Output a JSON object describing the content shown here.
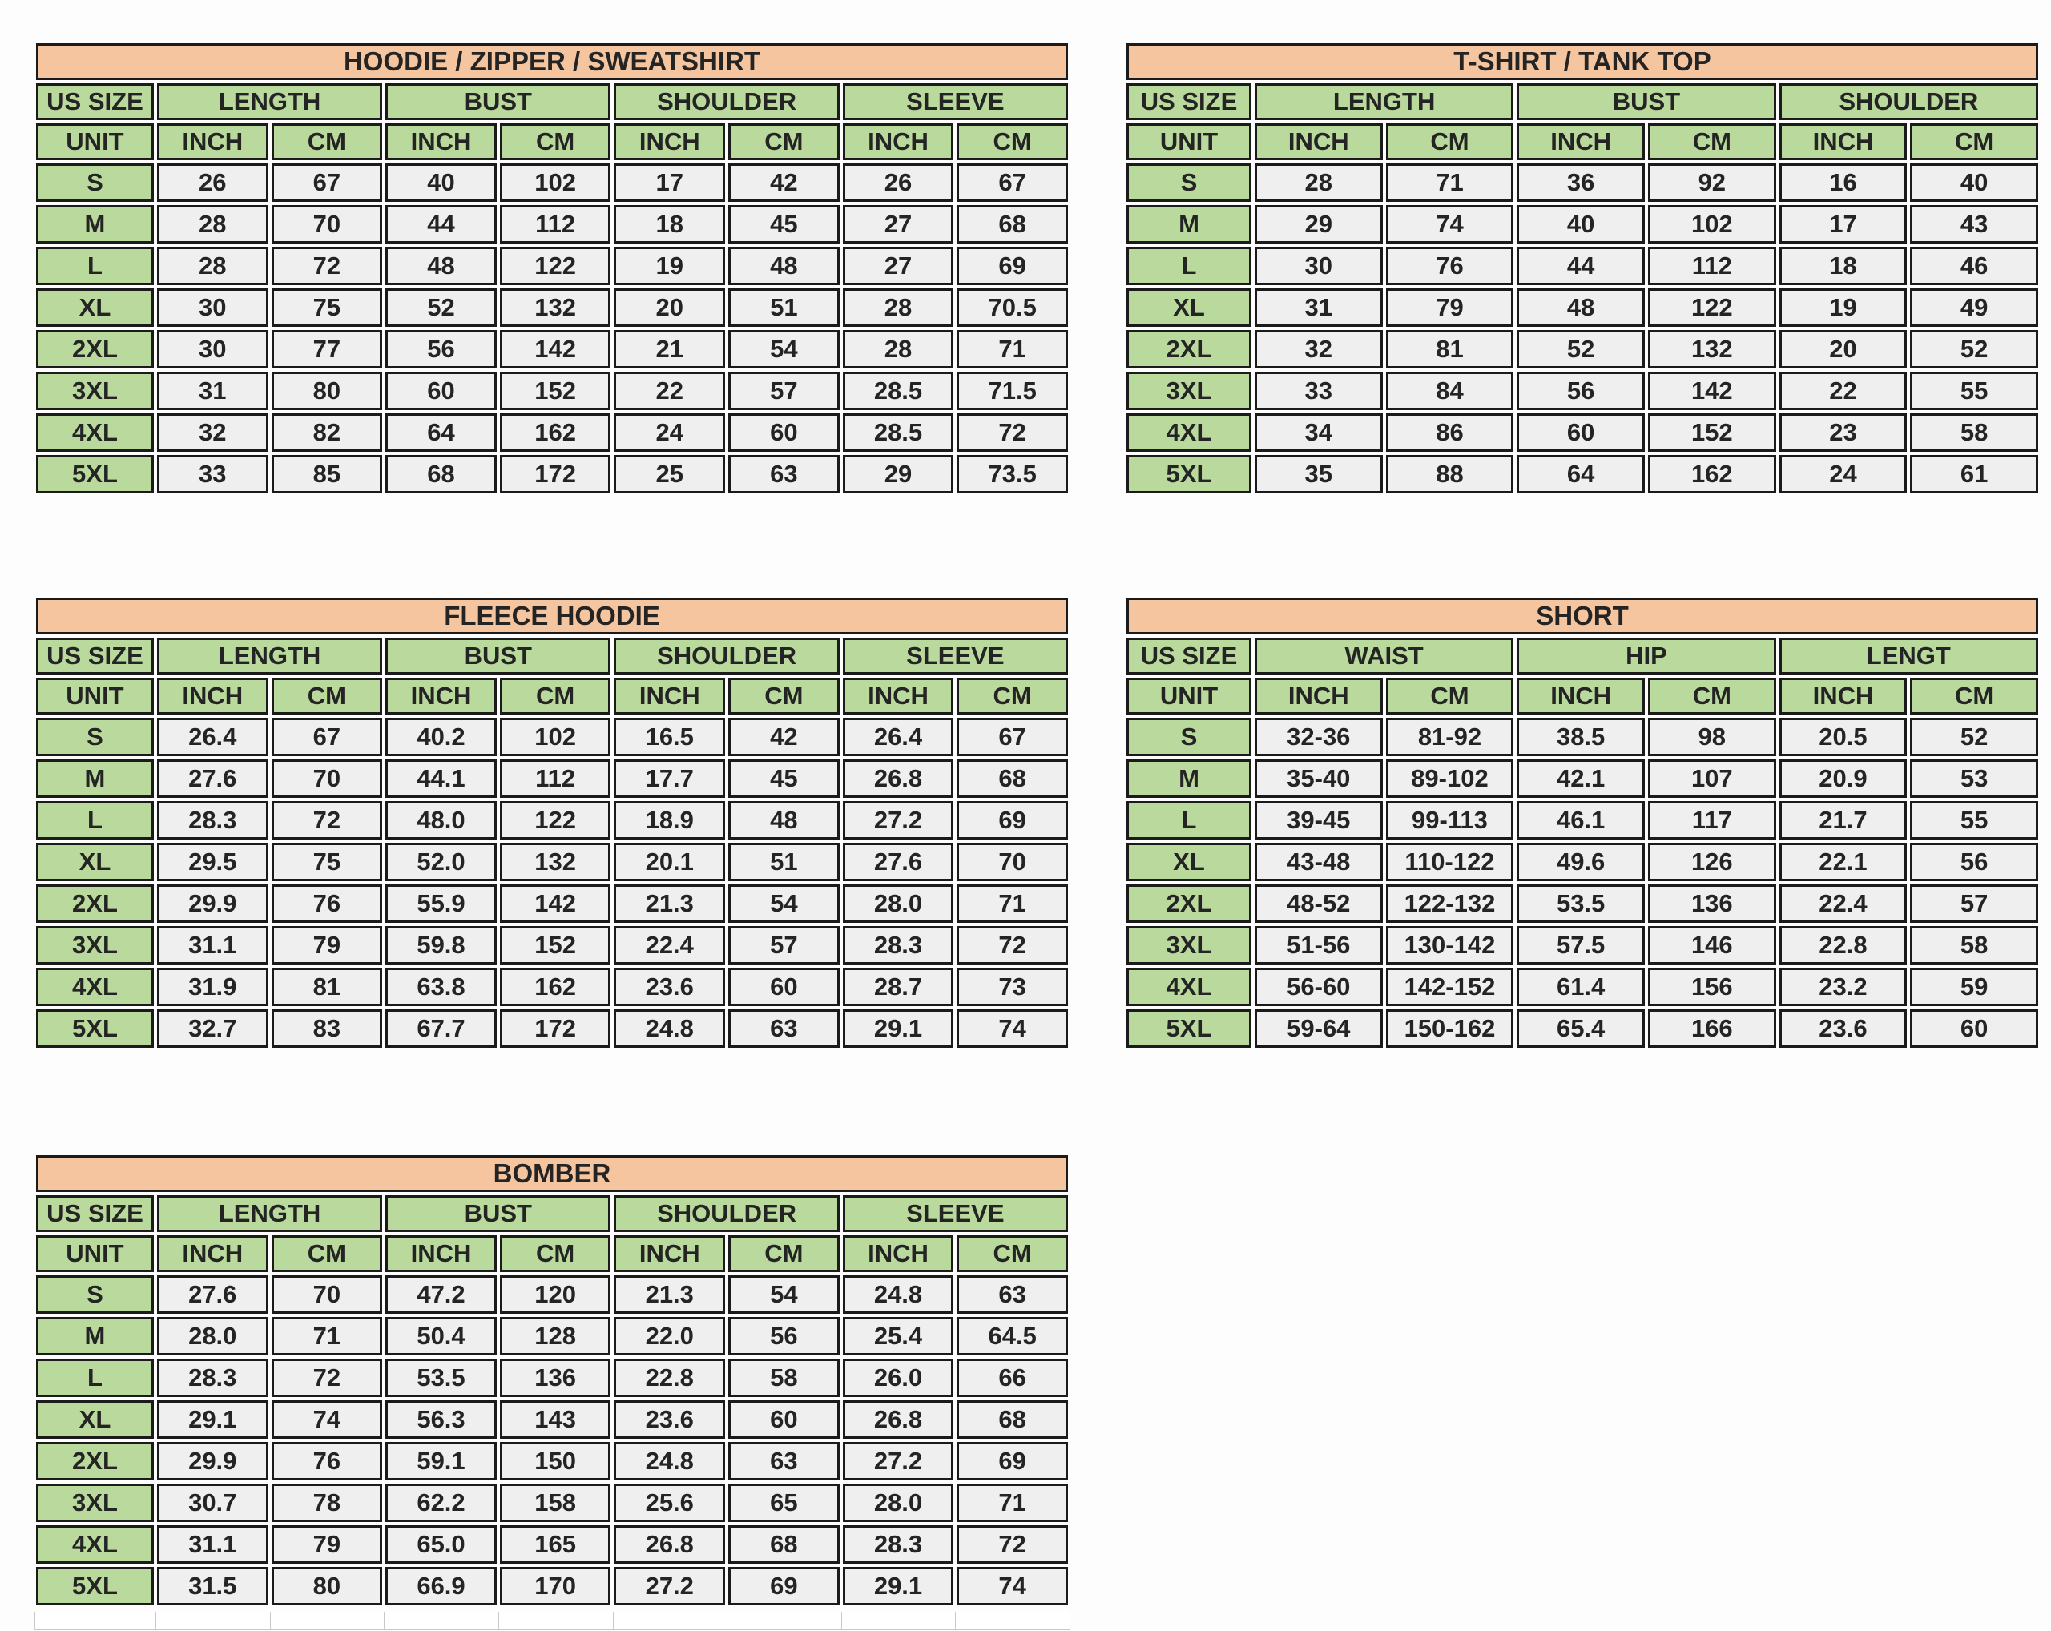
{
  "colors": {
    "title_bg": "#f5c5a0",
    "header_bg": "#bad99c",
    "cell_bg": "#efefef",
    "border": "#1b1b1b",
    "text": "#242424"
  },
  "tables": [
    {
      "title": "HOODIE / ZIPPER / SWEATSHIRT",
      "size_col_header": "US SIZE",
      "unit_label": "UNIT",
      "groups": [
        "LENGTH",
        "BUST",
        "SHOULDER",
        "SLEEVE"
      ],
      "units": [
        "INCH",
        "CM",
        "INCH",
        "CM",
        "INCH",
        "CM",
        "INCH",
        "CM"
      ],
      "rows": [
        {
          "size": "S",
          "values": [
            "26",
            "67",
            "40",
            "102",
            "17",
            "42",
            "26",
            "67"
          ]
        },
        {
          "size": "M",
          "values": [
            "28",
            "70",
            "44",
            "112",
            "18",
            "45",
            "27",
            "68"
          ]
        },
        {
          "size": "L",
          "values": [
            "28",
            "72",
            "48",
            "122",
            "19",
            "48",
            "27",
            "69"
          ]
        },
        {
          "size": "XL",
          "values": [
            "30",
            "75",
            "52",
            "132",
            "20",
            "51",
            "28",
            "70.5"
          ]
        },
        {
          "size": "2XL",
          "values": [
            "30",
            "77",
            "56",
            "142",
            "21",
            "54",
            "28",
            "71"
          ]
        },
        {
          "size": "3XL",
          "values": [
            "31",
            "80",
            "60",
            "152",
            "22",
            "57",
            "28.5",
            "71.5"
          ]
        },
        {
          "size": "4XL",
          "values": [
            "32",
            "82",
            "64",
            "162",
            "24",
            "60",
            "28.5",
            "72"
          ]
        },
        {
          "size": "5XL",
          "values": [
            "33",
            "85",
            "68",
            "172",
            "25",
            "63",
            "29",
            "73.5"
          ]
        }
      ]
    },
    {
      "title": "T-SHIRT / TANK TOP",
      "size_col_header": "US SIZE",
      "unit_label": "UNIT",
      "groups": [
        "LENGTH",
        "BUST",
        "SHOULDER"
      ],
      "units": [
        "INCH",
        "CM",
        "INCH",
        "CM",
        "INCH",
        "CM"
      ],
      "rows": [
        {
          "size": "S",
          "values": [
            "28",
            "71",
            "36",
            "92",
            "16",
            "40"
          ]
        },
        {
          "size": "M",
          "values": [
            "29",
            "74",
            "40",
            "102",
            "17",
            "43"
          ]
        },
        {
          "size": "L",
          "values": [
            "30",
            "76",
            "44",
            "112",
            "18",
            "46"
          ]
        },
        {
          "size": "XL",
          "values": [
            "31",
            "79",
            "48",
            "122",
            "19",
            "49"
          ]
        },
        {
          "size": "2XL",
          "values": [
            "32",
            "81",
            "52",
            "132",
            "20",
            "52"
          ]
        },
        {
          "size": "3XL",
          "values": [
            "33",
            "84",
            "56",
            "142",
            "22",
            "55"
          ]
        },
        {
          "size": "4XL",
          "values": [
            "34",
            "86",
            "60",
            "152",
            "23",
            "58"
          ]
        },
        {
          "size": "5XL",
          "values": [
            "35",
            "88",
            "64",
            "162",
            "24",
            "61"
          ]
        }
      ]
    },
    {
      "title": "FLEECE HOODIE",
      "size_col_header": "US SIZE",
      "unit_label": "UNIT",
      "groups": [
        "LENGTH",
        "BUST",
        "SHOULDER",
        "SLEEVE"
      ],
      "units": [
        "INCH",
        "CM",
        "INCH",
        "CM",
        "INCH",
        "CM",
        "INCH",
        "CM"
      ],
      "rows": [
        {
          "size": "S",
          "values": [
            "26.4",
            "67",
            "40.2",
            "102",
            "16.5",
            "42",
            "26.4",
            "67"
          ]
        },
        {
          "size": "M",
          "values": [
            "27.6",
            "70",
            "44.1",
            "112",
            "17.7",
            "45",
            "26.8",
            "68"
          ]
        },
        {
          "size": "L",
          "values": [
            "28.3",
            "72",
            "48.0",
            "122",
            "18.9",
            "48",
            "27.2",
            "69"
          ]
        },
        {
          "size": "XL",
          "values": [
            "29.5",
            "75",
            "52.0",
            "132",
            "20.1",
            "51",
            "27.6",
            "70"
          ]
        },
        {
          "size": "2XL",
          "values": [
            "29.9",
            "76",
            "55.9",
            "142",
            "21.3",
            "54",
            "28.0",
            "71"
          ]
        },
        {
          "size": "3XL",
          "values": [
            "31.1",
            "79",
            "59.8",
            "152",
            "22.4",
            "57",
            "28.3",
            "72"
          ]
        },
        {
          "size": "4XL",
          "values": [
            "31.9",
            "81",
            "63.8",
            "162",
            "23.6",
            "60",
            "28.7",
            "73"
          ]
        },
        {
          "size": "5XL",
          "values": [
            "32.7",
            "83",
            "67.7",
            "172",
            "24.8",
            "63",
            "29.1",
            "74"
          ]
        }
      ]
    },
    {
      "title": "SHORT",
      "size_col_header": "US SIZE",
      "unit_label": "UNIT",
      "groups": [
        "WAIST",
        "HIP",
        "LENGT"
      ],
      "units": [
        "INCH",
        "CM",
        "INCH",
        "CM",
        "INCH",
        "CM"
      ],
      "rows": [
        {
          "size": "S",
          "values": [
            "32-36",
            "81-92",
            "38.5",
            "98",
            "20.5",
            "52"
          ]
        },
        {
          "size": "M",
          "values": [
            "35-40",
            "89-102",
            "42.1",
            "107",
            "20.9",
            "53"
          ]
        },
        {
          "size": "L",
          "values": [
            "39-45",
            "99-113",
            "46.1",
            "117",
            "21.7",
            "55"
          ]
        },
        {
          "size": "XL",
          "values": [
            "43-48",
            "110-122",
            "49.6",
            "126",
            "22.1",
            "56"
          ]
        },
        {
          "size": "2XL",
          "values": [
            "48-52",
            "122-132",
            "53.5",
            "136",
            "22.4",
            "57"
          ]
        },
        {
          "size": "3XL",
          "values": [
            "51-56",
            "130-142",
            "57.5",
            "146",
            "22.8",
            "58"
          ]
        },
        {
          "size": "4XL",
          "values": [
            "56-60",
            "142-152",
            "61.4",
            "156",
            "23.2",
            "59"
          ]
        },
        {
          "size": "5XL",
          "values": [
            "59-64",
            "150-162",
            "65.4",
            "166",
            "23.6",
            "60"
          ]
        }
      ]
    },
    {
      "title": "BOMBER",
      "size_col_header": "US SIZE",
      "unit_label": "UNIT",
      "groups": [
        "LENGTH",
        "BUST",
        "SHOULDER",
        "SLEEVE"
      ],
      "units": [
        "INCH",
        "CM",
        "INCH",
        "CM",
        "INCH",
        "CM",
        "INCH",
        "CM"
      ],
      "rows": [
        {
          "size": "S",
          "values": [
            "27.6",
            "70",
            "47.2",
            "120",
            "21.3",
            "54",
            "24.8",
            "63"
          ]
        },
        {
          "size": "M",
          "values": [
            "28.0",
            "71",
            "50.4",
            "128",
            "22.0",
            "56",
            "25.4",
            "64.5"
          ]
        },
        {
          "size": "L",
          "values": [
            "28.3",
            "72",
            "53.5",
            "136",
            "22.8",
            "58",
            "26.0",
            "66"
          ]
        },
        {
          "size": "XL",
          "values": [
            "29.1",
            "74",
            "56.3",
            "143",
            "23.6",
            "60",
            "26.8",
            "68"
          ]
        },
        {
          "size": "2XL",
          "values": [
            "29.9",
            "76",
            "59.1",
            "150",
            "24.8",
            "63",
            "27.2",
            "69"
          ]
        },
        {
          "size": "3XL",
          "values": [
            "30.7",
            "78",
            "62.2",
            "158",
            "25.6",
            "65",
            "28.0",
            "71"
          ]
        },
        {
          "size": "4XL",
          "values": [
            "31.1",
            "79",
            "65.0",
            "165",
            "26.8",
            "68",
            "28.3",
            "72"
          ]
        },
        {
          "size": "5XL",
          "values": [
            "31.5",
            "80",
            "66.9",
            "170",
            "27.2",
            "69",
            "29.1",
            "74"
          ]
        }
      ]
    }
  ]
}
